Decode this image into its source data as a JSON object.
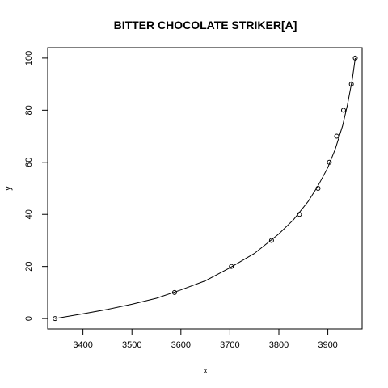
{
  "chart_data": {
    "type": "scatter",
    "title": "BITTER CHOCOLATE STRIKER[A]",
    "xlabel": "x",
    "ylabel": "y",
    "xlim": [
      3328,
      3970
    ],
    "ylim": [
      -4,
      104
    ],
    "xticks": [
      3400,
      3500,
      3600,
      3700,
      3800,
      3900
    ],
    "yticks": [
      0,
      20,
      40,
      60,
      80,
      100
    ],
    "grid": false,
    "points": {
      "x": [
        3343,
        3587,
        3703,
        3785,
        3842,
        3880,
        3903,
        3918,
        3932,
        3948,
        3956
      ],
      "y": [
        0,
        10,
        20,
        30,
        40,
        50,
        60,
        70,
        80,
        90,
        100
      ]
    },
    "fit_curve": {
      "x": [
        3343,
        3400,
        3450,
        3500,
        3550,
        3600,
        3650,
        3700,
        3750,
        3800,
        3830,
        3860,
        3880,
        3900,
        3915,
        3930,
        3940,
        3950,
        3956
      ],
      "y": [
        0,
        1.8,
        3.5,
        5.5,
        7.8,
        11,
        14.5,
        19.5,
        25,
        32.5,
        38,
        45,
        51,
        58,
        65,
        74,
        82,
        92,
        100
      ]
    }
  }
}
